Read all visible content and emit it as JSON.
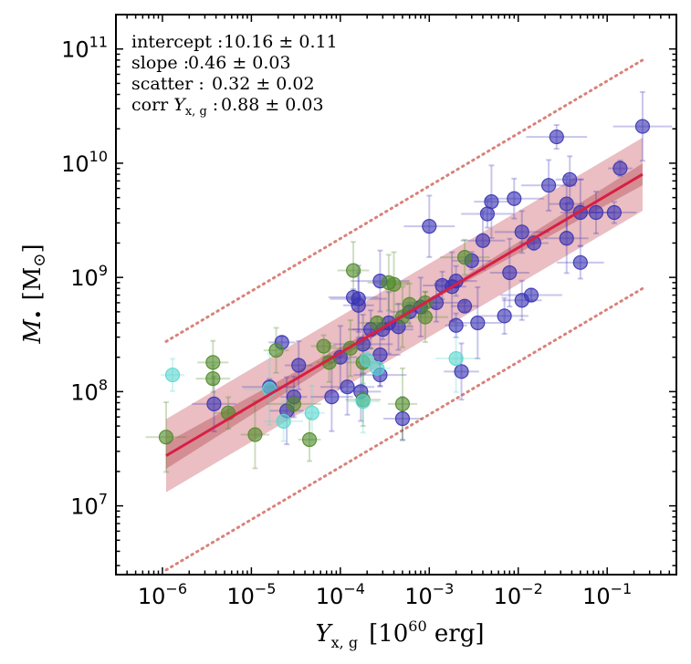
{
  "chart_data": {
    "type": "scatter",
    "x_scale": "log",
    "y_scale": "log",
    "xlim": [
      3e-07,
      0.6
    ],
    "ylim": [
      2500000.0,
      200000000000.0
    ],
    "xlabel": {
      "symbol": "Y",
      "subscript": "x, g",
      "unit_base": "[10",
      "unit_exp": "60",
      "unit_rest": " erg]"
    },
    "ylabel": {
      "symbol": "M",
      "subscript": "•",
      "unit_open": "[M",
      "unit_sub": "⊙",
      "unit_close": "]"
    },
    "x_ticks": [
      {
        "value": 1e-06,
        "base": "10",
        "exp": "−6"
      },
      {
        "value": 1e-05,
        "base": "10",
        "exp": "−5"
      },
      {
        "value": 0.0001,
        "base": "10",
        "exp": "−4"
      },
      {
        "value": 0.001,
        "base": "10",
        "exp": "−3"
      },
      {
        "value": 0.01,
        "base": "10",
        "exp": "−2"
      },
      {
        "value": 0.1,
        "base": "10",
        "exp": "−1"
      }
    ],
    "y_ticks": [
      {
        "value": 10000000.0,
        "base": "10",
        "exp": "7"
      },
      {
        "value": 100000000.0,
        "base": "10",
        "exp": "8"
      },
      {
        "value": 1000000000.0,
        "base": "10",
        "exp": "9"
      },
      {
        "value": 10000000000.0,
        "base": "10",
        "exp": "10"
      },
      {
        "value": 100000000000.0,
        "base": "10",
        "exp": "11"
      }
    ],
    "annotations": [
      {
        "label": "intercept :",
        "value": "10.16 ± 0.11"
      },
      {
        "label": "slope :",
        "value": "0.46 ± 0.03"
      },
      {
        "label": "scatter :",
        "value": "0.32 ± 0.02"
      },
      {
        "label": "corr Y",
        "label_sub": "x, g",
        "label_end": " :",
        "value": "0.88 ± 0.03"
      }
    ],
    "fit": {
      "x_range": [
        1.1e-06,
        0.25
      ],
      "pivot_x": 0.001,
      "intercept_log": 8.8,
      "slope": 0.46,
      "intrinsic_scatter_dex": 0.32,
      "fit_uncertainty_at_ends_dex": 0.1,
      "outer_band_dex": 1.0
    },
    "colors": {
      "series_blue": "#3a33b3",
      "series_green": "#4f8a29",
      "series_cyan": "#5cd6cf",
      "fit_line": "#d81f45",
      "band": "#d9888f",
      "dotted": "#d9827a"
    },
    "series": [
      {
        "color_key": "series_blue",
        "points": [
          [
            0.25,
            21000000000.0
          ],
          [
            0.14,
            9000000000.0
          ],
          [
            0.12,
            3700000000.0
          ],
          [
            0.075,
            3700000000.0
          ],
          [
            0.05,
            3700000000.0
          ],
          [
            0.05,
            1350000000.0
          ],
          [
            0.038,
            7200000000.0
          ],
          [
            0.035,
            4400000000.0
          ],
          [
            0.035,
            2200000000.0
          ],
          [
            0.027,
            17000000000.0
          ],
          [
            0.022,
            6400000000.0
          ],
          [
            0.015,
            2000000000.0
          ],
          [
            0.014,
            700000000.0
          ],
          [
            0.011,
            2500000000.0
          ],
          [
            0.011,
            630000000.0
          ],
          [
            0.009,
            4900000000.0
          ],
          [
            0.008,
            1100000000.0
          ],
          [
            0.007,
            460000000.0
          ],
          [
            0.005,
            4600000000.0
          ],
          [
            0.0045,
            3600000000.0
          ],
          [
            0.004,
            2100000000.0
          ],
          [
            0.0035,
            400000000.0
          ],
          [
            0.003,
            1400000000.0
          ],
          [
            0.0025,
            560000000.0
          ],
          [
            0.0023,
            150000000.0
          ],
          [
            0.002,
            930000000.0
          ],
          [
            0.002,
            380000000.0
          ],
          [
            0.0018,
            830000000.0
          ],
          [
            0.0014,
            850000000.0
          ],
          [
            0.0012,
            600000000.0
          ],
          [
            0.001,
            2800000000.0
          ],
          [
            0.0008,
            550000000.0
          ],
          [
            0.0006,
            500000000.0
          ],
          [
            0.00045,
            370000000.0
          ],
          [
            0.00035,
            400000000.0
          ],
          [
            0.0003,
            350000000.0
          ],
          [
            0.00028,
            930000000.0
          ],
          [
            0.00028,
            210000000.0
          ],
          [
            0.00028,
            140000000.0
          ],
          [
            0.00022,
            350000000.0
          ],
          [
            0.00018,
            260000000.0
          ],
          [
            0.00017,
            100000000.0
          ],
          [
            0.00016,
            570000000.0
          ],
          [
            0.00014,
            670000000.0
          ],
          [
            0.00012,
            110000000.0
          ],
          [
            0.0001,
            200000000.0
          ],
          [
            8e-05,
            90000000.0
          ],
          [
            3.4e-05,
            170000000.0
          ],
          [
            3e-05,
            90000000.0
          ],
          [
            2.5e-05,
            68000000.0
          ],
          [
            2.2e-05,
            270000000.0
          ],
          [
            1.6e-05,
            110000000.0
          ],
          [
            3.8e-06,
            78000000.0
          ],
          [
            0.0005,
            58000000.0
          ],
          [
            0.00016,
            650000000.0
          ]
        ]
      },
      {
        "color_key": "series_green",
        "points": [
          [
            1.1e-06,
            40000000.0
          ],
          [
            3.7e-06,
            180000000.0
          ],
          [
            3.7e-06,
            130000000.0
          ],
          [
            5.5e-06,
            65000000.0
          ],
          [
            1.1e-05,
            42000000.0
          ],
          [
            1.9e-05,
            230000000.0
          ],
          [
            3e-05,
            78000000.0
          ],
          [
            4.5e-05,
            38000000.0
          ],
          [
            6.5e-05,
            250000000.0
          ],
          [
            7.5e-05,
            180000000.0
          ],
          [
            0.00013,
            240000000.0
          ],
          [
            0.00014,
            1150000000.0
          ],
          [
            0.00018,
            180000000.0
          ],
          [
            0.00018,
            85000000.0
          ],
          [
            0.00026,
            400000000.0
          ],
          [
            0.00035,
            900000000.0
          ],
          [
            0.0004,
            870000000.0
          ],
          [
            0.0005,
            450000000.0
          ],
          [
            0.0006,
            580000000.0
          ],
          [
            0.0009,
            450000000.0
          ],
          [
            0.0009,
            600000000.0
          ],
          [
            0.0025,
            1500000000.0
          ],
          [
            0.0005,
            78000000.0
          ]
        ]
      },
      {
        "color_key": "series_cyan",
        "points": [
          [
            1.3e-06,
            140000000.0
          ],
          [
            1.6e-05,
            105000000.0
          ],
          [
            2.3e-05,
            55000000.0
          ],
          [
            4.8e-05,
            65000000.0
          ],
          [
            0.00018,
            82000000.0
          ],
          [
            0.00026,
            160000000.0
          ],
          [
            0.0002,
            190000000.0
          ],
          [
            0.002,
            195000000.0
          ]
        ]
      }
    ]
  }
}
